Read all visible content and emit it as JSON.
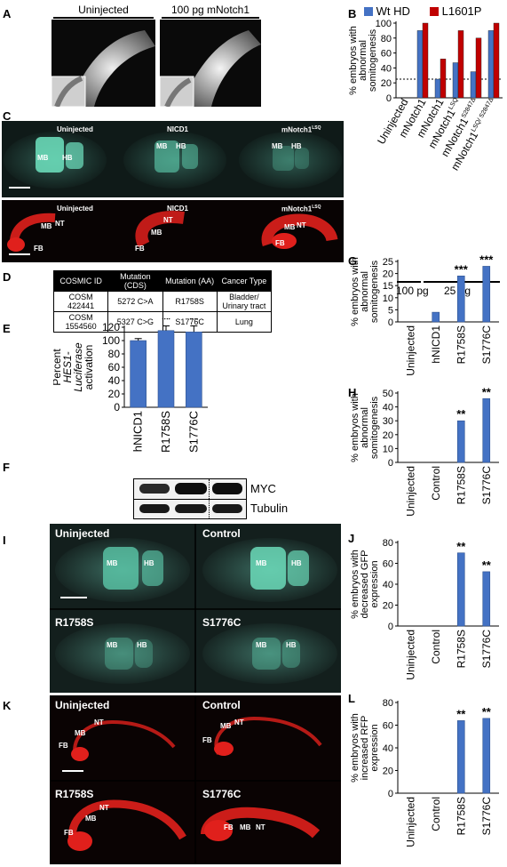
{
  "panel_letters": {
    "A": "A",
    "B": "B",
    "C": "C",
    "D": "D",
    "E": "E",
    "F": "F",
    "G": "G",
    "H": "H",
    "I": "I",
    "J": "J",
    "K": "K",
    "L": "L"
  },
  "panel_A": {
    "labels": [
      "Uninjected",
      "100 pg mNotch1"
    ]
  },
  "panel_C": {
    "top": [
      {
        "title": "Uninjected",
        "marks": [
          "MB",
          "HB"
        ]
      },
      {
        "title": "NICD1",
        "marks": [
          "MB",
          "HB"
        ]
      },
      {
        "title": "mNotch1",
        "title_sup": "LSQ",
        "marks": [
          "MB",
          "HB"
        ]
      }
    ],
    "bottom": [
      {
        "title": "Uninjected",
        "marks": [
          "MB",
          "NT",
          "FB"
        ]
      },
      {
        "title": "NICD1",
        "marks": [
          "NT",
          "MB",
          "FB"
        ]
      },
      {
        "title": "mNotch1",
        "title_sup": "LSQ",
        "marks": [
          "MB",
          "NT",
          "FB"
        ]
      }
    ]
  },
  "panel_D": {
    "headers": [
      "COSMIC ID",
      "Mutation (CDS)",
      "Mutation (AA)",
      "Cancer Type"
    ],
    "rows": [
      [
        "COSM 422441",
        "5272 C>A",
        "R1758S",
        "Bladder/ Urinary tract"
      ],
      [
        "COSM 1554560",
        "5327 C>G",
        "S1776C",
        "Lung"
      ]
    ]
  },
  "panel_F": {
    "labels": [
      "hNICD1",
      "R1758S",
      "S1776C"
    ],
    "bands": [
      "MYC",
      "Tubulin"
    ]
  },
  "panel_I": {
    "titles": [
      "Uninjected",
      "Control",
      "R1758S",
      "S1776C"
    ],
    "marks": [
      "MB",
      "HB"
    ]
  },
  "panel_K": {
    "titles": [
      "Uninjected",
      "Control",
      "R1758S",
      "S1776C"
    ],
    "marks": [
      "NT",
      "MB",
      "FB"
    ]
  },
  "colors": {
    "blue": "#4472C4",
    "red": "#C00000",
    "gfp": "#5fd0b0",
    "rfp": "#e0201c"
  },
  "chart_data": [
    {
      "panel": "B",
      "type": "bar",
      "categories": [
        "Uninjected",
        "mNotch1",
        "mNotch1",
        "mNotch1LSQ",
        "mNotch1S2847Δ",
        "mNotch1LSQ/S2847Δ"
      ],
      "category_labels": [
        {
          "main": "Uninjected",
          "sup": ""
        },
        {
          "main": "mNotch1",
          "sup": ""
        },
        {
          "main": "mNotch1",
          "sup": ""
        },
        {
          "main": "mNotch1",
          "sup": "LSQ"
        },
        {
          "main": "mNotch1",
          "sup": "S2847Δ"
        },
        {
          "main": "mNotch1",
          "sup": "LSQ/ S2847Δ"
        }
      ],
      "series": [
        {
          "name": "Wt HD",
          "color": "#4472C4",
          "values": [
            0,
            90,
            25,
            47,
            35,
            90
          ]
        },
        {
          "name": "L1601P",
          "color": "#C00000",
          "values": [
            0,
            100,
            52,
            90,
            80,
            100
          ]
        }
      ],
      "ylabel": "% embryos with abnormal somitogenesis",
      "ylim": [
        0,
        100
      ],
      "yticks": [
        0,
        20,
        40,
        60,
        80,
        100
      ],
      "reference_line": 25,
      "dose_labels": [
        "100 pg",
        "25 pg"
      ],
      "legend": "top"
    },
    {
      "panel": "E",
      "type": "bar",
      "categories": [
        "hNICD1",
        "R1758S",
        "S1776C"
      ],
      "values": [
        100,
        115,
        113
      ],
      "errors": [
        3,
        7,
        9
      ],
      "annotations": [
        "",
        "**",
        "**"
      ],
      "ylabel": "Percent HES1-Luciferase activation",
      "ylim": [
        0,
        120
      ],
      "yticks": [
        0,
        20,
        40,
        60,
        80,
        100,
        120
      ]
    },
    {
      "panel": "G",
      "type": "bar",
      "categories": [
        "Uninjected",
        "hNICD1",
        "R1758S",
        "S1776C"
      ],
      "values": [
        0,
        4,
        19,
        23
      ],
      "annotations": [
        "",
        "",
        "***",
        "***"
      ],
      "ylabel": "% embryos with abnormal somitogenesis",
      "ylim": [
        0,
        25
      ],
      "yticks": [
        0,
        5,
        10,
        15,
        20,
        25
      ]
    },
    {
      "panel": "H",
      "type": "bar",
      "categories": [
        "Uninjected",
        "Control",
        "R1758S",
        "S1776C"
      ],
      "values": [
        0,
        0,
        30,
        46
      ],
      "annotations": [
        "",
        "",
        "**",
        "**"
      ],
      "ylabel": "% embryos with abnormal somitogenesis",
      "ylim": [
        0,
        50
      ],
      "yticks": [
        0,
        10,
        20,
        30,
        40,
        50
      ]
    },
    {
      "panel": "J",
      "type": "bar",
      "categories": [
        "Uninjected",
        "Control",
        "R1758S",
        "S1776C"
      ],
      "values": [
        0,
        0,
        70,
        52
      ],
      "annotations": [
        "",
        "",
        "**",
        "**"
      ],
      "ylabel": "% embryos with decreased GFP expression",
      "ylim": [
        0,
        80
      ],
      "yticks": [
        0,
        20,
        40,
        60,
        80
      ]
    },
    {
      "panel": "L",
      "type": "bar",
      "categories": [
        "Uninjected",
        "Control",
        "R1758S",
        "S1776C"
      ],
      "values": [
        0,
        0,
        64,
        66
      ],
      "annotations": [
        "",
        "",
        "**",
        "**"
      ],
      "ylabel": "% embryos with increased RFP expression",
      "ylim": [
        0,
        80
      ],
      "yticks": [
        0,
        20,
        40,
        60,
        80
      ]
    }
  ]
}
